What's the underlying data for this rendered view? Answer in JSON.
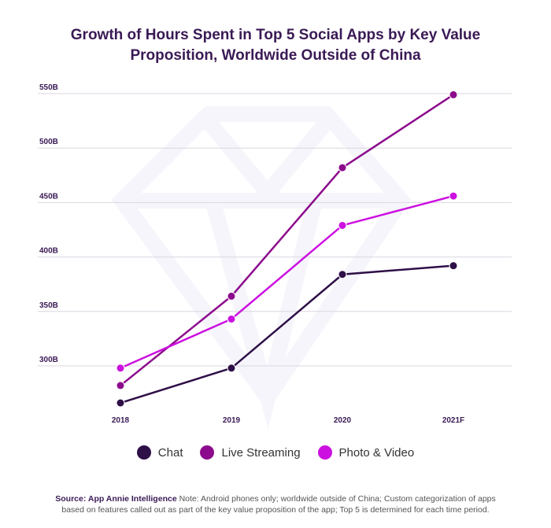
{
  "chart_data": {
    "type": "line",
    "title": "Growth of Hours Spent in Top 5 Social Apps by Key Value Proposition, Worldwide Outside of China",
    "title_lines": [
      "Growth of Hours Spent in Top 5 Social Apps by Key Value",
      "Proposition, Worldwide Outside of China"
    ],
    "xlabel": "",
    "ylabel": "",
    "categories": [
      "2018",
      "2019",
      "2020",
      "2021F"
    ],
    "yticks": [
      300,
      350,
      400,
      450,
      500,
      550
    ],
    "ytick_labels": [
      "300B",
      "350B",
      "400B",
      "450B",
      "500B",
      "550B"
    ],
    "ylim": [
      250,
      560
    ],
    "grid": true,
    "legend_position": "bottom",
    "series": [
      {
        "name": "Chat",
        "color": "#2e0f47",
        "values": [
          266,
          298,
          384,
          392
        ]
      },
      {
        "name": "Live Streaming",
        "color": "#8c0a8c",
        "values": [
          282,
          364,
          482,
          549
        ]
      },
      {
        "name": "Photo & Video",
        "color": "#cc10e0",
        "values": [
          298,
          343,
          429,
          456
        ]
      }
    ]
  },
  "footnote": {
    "source": "Source: App Annie Intelligence",
    "note": " Note: Android phones only;  worldwide outside of China; Custom categorization of apps based on features called out as part of the key value proposition of the app; Top 5 is determined for each time period."
  }
}
